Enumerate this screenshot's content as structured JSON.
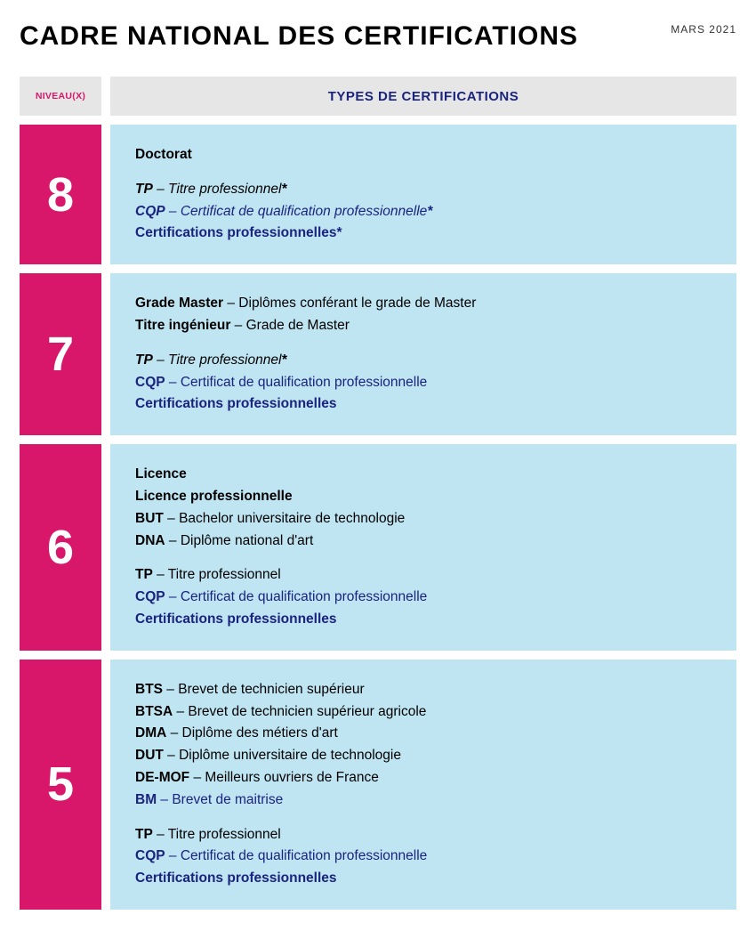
{
  "header": {
    "title": "CADRE NATIONAL DES CERTIFICATIONS",
    "date": "MARS 2021"
  },
  "columns": {
    "left": "NIVEAU(X)",
    "right": "TYPES DE CERTIFICATIONS"
  },
  "colors": {
    "magenta": "#d8176a",
    "lightblue": "#bfe5f2",
    "grey": "#e6e6e6",
    "navy": "#1a237e"
  },
  "rows": [
    {
      "level": "8",
      "groups": [
        [
          {
            "parts": [
              {
                "text": "Doctorat",
                "bold": true
              }
            ]
          }
        ],
        [
          {
            "parts": [
              {
                "text": "TP",
                "bold": true,
                "italic": true
              },
              {
                "text": " – Titre professionnel",
                "italic": true
              },
              {
                "text": "*",
                "italic": true,
                "bold": true
              }
            ]
          },
          {
            "parts": [
              {
                "text": "CQP",
                "bold": true,
                "italic": true,
                "navy": true
              },
              {
                "text": " – Certificat de qualification professionnelle",
                "italic": true,
                "navy": true
              },
              {
                "text": "*",
                "italic": true,
                "bold": true,
                "navy": true
              }
            ]
          },
          {
            "parts": [
              {
                "text": "Certifications professionnelles",
                "bold": true,
                "navy": true
              },
              {
                "text": "*",
                "bold": true,
                "navy": true
              }
            ]
          }
        ]
      ]
    },
    {
      "level": "7",
      "groups": [
        [
          {
            "parts": [
              {
                "text": "Grade Master",
                "bold": true
              },
              {
                "text": " – Diplômes conférant le grade de Master"
              }
            ]
          },
          {
            "parts": [
              {
                "text": "Titre ingénieur",
                "bold": true
              },
              {
                "text": " – Grade de Master"
              }
            ]
          }
        ],
        [
          {
            "parts": [
              {
                "text": "TP",
                "bold": true,
                "italic": true
              },
              {
                "text": " – Titre professionnel",
                "italic": true
              },
              {
                "text": "*",
                "italic": true,
                "bold": true
              }
            ]
          },
          {
            "parts": [
              {
                "text": "CQP",
                "bold": true,
                "navy": true
              },
              {
                "text": " – Certificat de qualification professionnelle",
                "navy": true
              }
            ]
          },
          {
            "parts": [
              {
                "text": "Certifications professionnelles",
                "bold": true,
                "navy": true
              }
            ]
          }
        ]
      ]
    },
    {
      "level": "6",
      "groups": [
        [
          {
            "parts": [
              {
                "text": "Licence",
                "bold": true
              }
            ]
          },
          {
            "parts": [
              {
                "text": "Licence professionnelle",
                "bold": true
              }
            ]
          },
          {
            "parts": [
              {
                "text": "BUT",
                "bold": true
              },
              {
                "text": " – Bachelor universitaire de technologie"
              }
            ]
          },
          {
            "parts": [
              {
                "text": "DNA",
                "bold": true
              },
              {
                "text": " – Diplôme national d'art"
              }
            ]
          }
        ],
        [
          {
            "parts": [
              {
                "text": "TP",
                "bold": true
              },
              {
                "text": " – Titre professionnel"
              }
            ]
          },
          {
            "parts": [
              {
                "text": "CQP",
                "bold": true,
                "navy": true
              },
              {
                "text": " – Certificat de qualification professionnelle",
                "navy": true
              }
            ]
          },
          {
            "parts": [
              {
                "text": "Certifications professionnelles",
                "bold": true,
                "navy": true
              }
            ]
          }
        ]
      ]
    },
    {
      "level": "5",
      "groups": [
        [
          {
            "parts": [
              {
                "text": "BTS",
                "bold": true
              },
              {
                "text": " – Brevet de technicien supérieur"
              }
            ]
          },
          {
            "parts": [
              {
                "text": "BTSA",
                "bold": true
              },
              {
                "text": " – Brevet de technicien supérieur agricole"
              }
            ]
          },
          {
            "parts": [
              {
                "text": "DMA",
                "bold": true
              },
              {
                "text": " – Diplôme des métiers d'art"
              }
            ]
          },
          {
            "parts": [
              {
                "text": "DUT",
                "bold": true
              },
              {
                "text": " – Diplôme universitaire de technologie"
              }
            ]
          },
          {
            "parts": [
              {
                "text": "DE-MOF",
                "bold": true
              },
              {
                "text": " – Meilleurs ouvriers de France"
              }
            ]
          },
          {
            "parts": [
              {
                "text": "BM",
                "bold": true,
                "navy": true
              },
              {
                "text": " – Brevet de maitrise",
                "navy": true
              }
            ]
          }
        ],
        [
          {
            "parts": [
              {
                "text": "TP",
                "bold": true
              },
              {
                "text": " – Titre professionnel"
              }
            ]
          },
          {
            "parts": [
              {
                "text": "CQP",
                "bold": true,
                "navy": true
              },
              {
                "text": " – Certificat de qualification professionnelle",
                "navy": true
              }
            ]
          },
          {
            "parts": [
              {
                "text": "Certifications professionnelles",
                "bold": true,
                "navy": true
              }
            ]
          }
        ]
      ]
    }
  ]
}
